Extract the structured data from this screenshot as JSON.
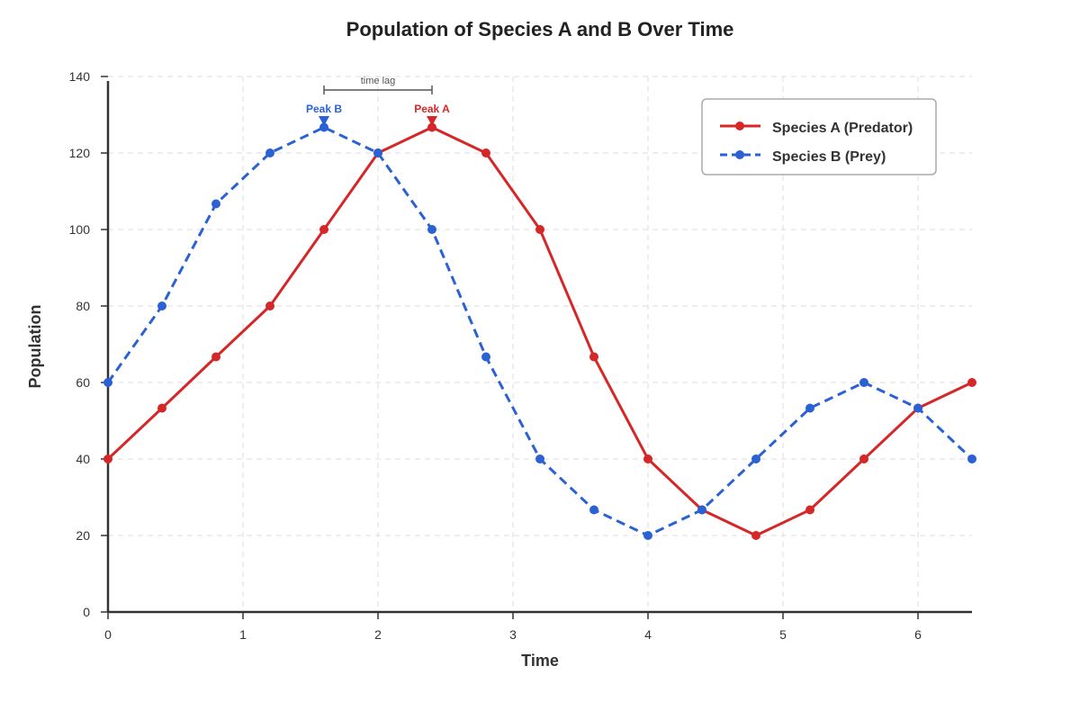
{
  "chart_data": {
    "type": "line",
    "title": "Population of Species A and B Over Time",
    "xlabel": "Time",
    "ylabel": "Population",
    "xlim": [
      0,
      6.4
    ],
    "ylim": [
      0,
      140
    ],
    "xticks": [
      0,
      1,
      2,
      3,
      4,
      5,
      6
    ],
    "yticks": [
      0,
      20,
      40,
      60,
      80,
      100,
      120,
      140
    ],
    "grid": true,
    "legend_position": "top-right",
    "x": [
      0,
      0.4,
      0.8,
      1.2,
      1.6,
      2.0,
      2.4,
      2.8,
      3.2,
      3.6,
      4.0,
      4.4,
      4.8,
      5.2,
      5.6,
      6.0,
      6.4
    ],
    "series": [
      {
        "name": "Species A (Predator)",
        "color": "#d62728",
        "line_style": "solid",
        "values": [
          40,
          53.3,
          66.7,
          80,
          100,
          120,
          126.7,
          120,
          100,
          66.7,
          40,
          26.7,
          20,
          26.7,
          40,
          53.3,
          60
        ]
      },
      {
        "name": "Species B (Prey)",
        "color": "#2a62d6",
        "line_style": "dashed",
        "values": [
          60,
          80,
          106.7,
          120,
          126.7,
          120,
          100,
          66.7,
          40,
          26.7,
          20,
          26.7,
          40,
          53.3,
          60,
          53.3,
          40
        ]
      }
    ],
    "annotations": {
      "peak_b": {
        "label": "Peak B",
        "x": 1.6,
        "y": 126.7,
        "color": "#2a62d6"
      },
      "peak_a": {
        "label": "Peak A",
        "x": 2.4,
        "y": 126.7,
        "color": "#d62728"
      },
      "time_lag": {
        "label": "time lag",
        "x_start": 1.6,
        "x_end": 2.4
      }
    }
  }
}
